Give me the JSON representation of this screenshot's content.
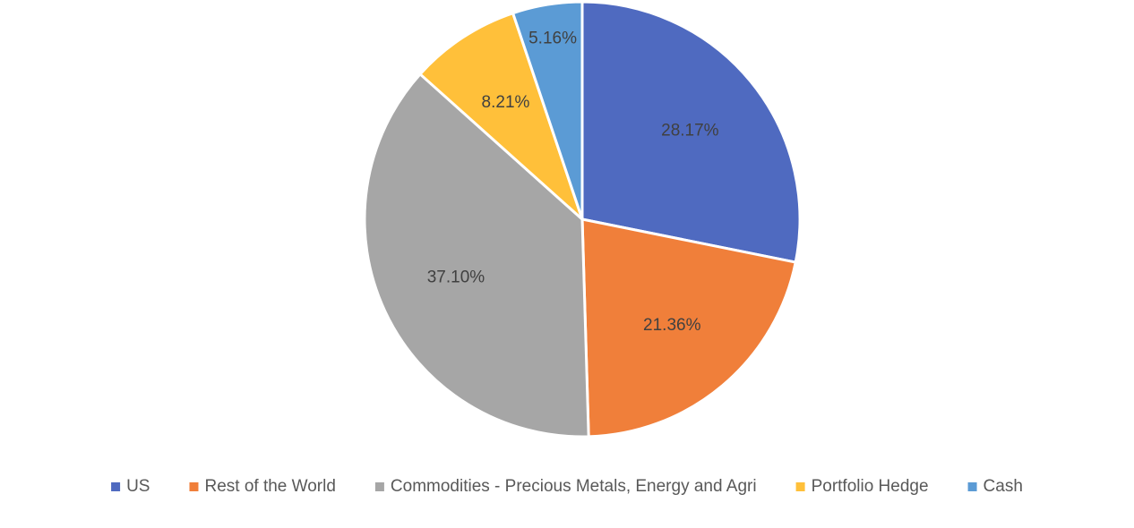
{
  "chart_data": {
    "type": "pie",
    "title": "",
    "slices": [
      {
        "label": "US",
        "value": 28.17,
        "display": "28.17%",
        "color": "#4F6AC0"
      },
      {
        "label": "Rest of the World",
        "value": 21.36,
        "display": "21.36%",
        "color": "#F07F3A"
      },
      {
        "label": "Commodities - Precious Metals, Energy and Agri",
        "value": 37.1,
        "display": "37.10%",
        "color": "#A6A6A6"
      },
      {
        "label": "Portfolio Hedge",
        "value": 8.21,
        "display": "8.21%",
        "color": "#FFC03A"
      },
      {
        "label": "Cash",
        "value": 5.16,
        "display": "5.16%",
        "color": "#5B9BD5"
      }
    ],
    "start_angle": "12 o'clock",
    "direction": "clockwise",
    "data_labels": "inside",
    "legend_position": "bottom"
  }
}
